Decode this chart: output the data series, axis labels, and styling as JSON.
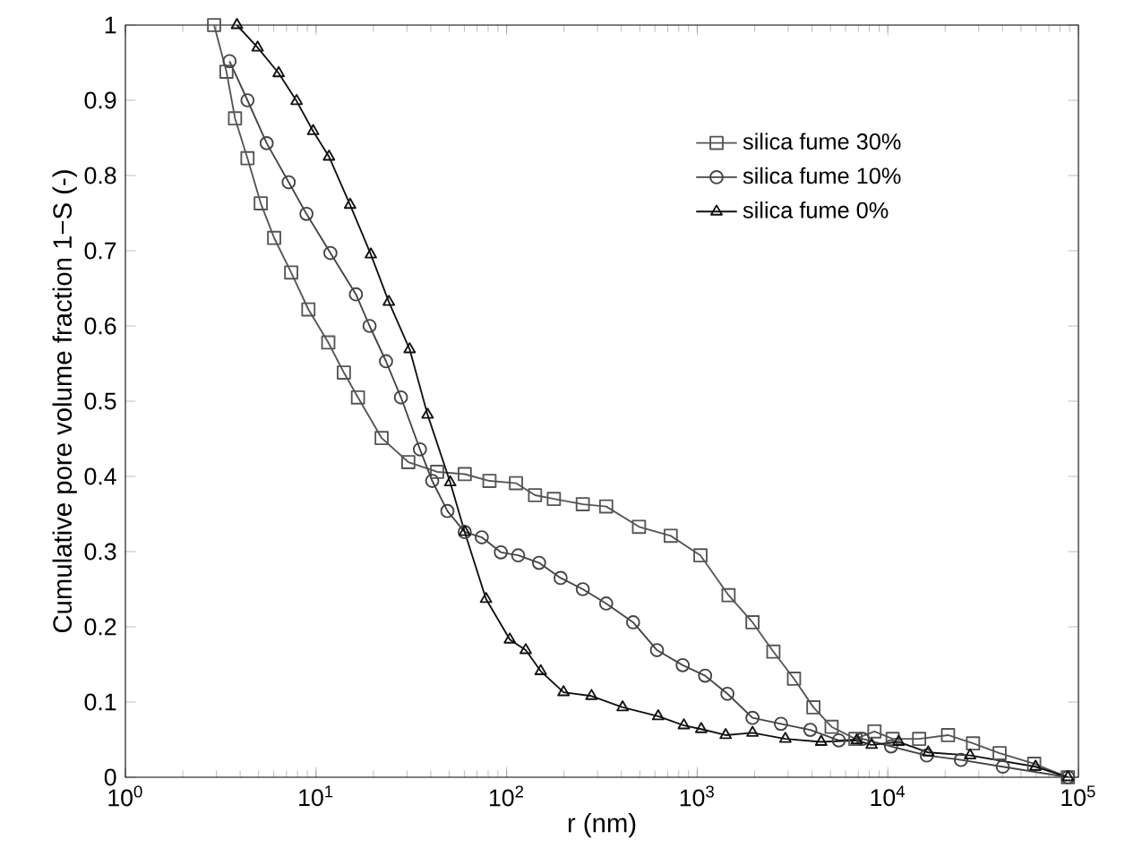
{
  "chart_data": {
    "type": "line",
    "xlabel": "r (nm)",
    "ylabel": "Cumulative pore volume fraction 1−S (-)",
    "log": "x",
    "legend": "top right",
    "grid": false,
    "line_style": "solid",
    "xlim": [
      1,
      100000
    ],
    "ylim": [
      0,
      1
    ],
    "xticks": [
      {
        "value": 1,
        "label": "10$^{0}$"
      },
      {
        "value": 10,
        "label": "10$^{1}$"
      },
      {
        "value": 100,
        "label": "10$^{2}$"
      },
      {
        "value": 1000,
        "label": "10$^{3}$"
      },
      {
        "value": 10000,
        "label": "10$^{4}$"
      },
      {
        "value": 100000,
        "label": "10$^{5}$"
      }
    ],
    "yticks": [
      0,
      0.1,
      0.2,
      0.3,
      0.4,
      0.5,
      0.6,
      0.7,
      0.8,
      0.9,
      1
    ],
    "series": [
      {
        "name": "silica fume 30%",
        "color": "#555555",
        "marker": "square",
        "x": [
          2.92,
          3.39,
          3.76,
          4.37,
          5.13,
          6.03,
          7.41,
          9.12,
          11.6,
          14.0,
          16.6,
          22.1,
          30.5,
          43.2,
          60.3,
          81.3,
          112,
          141,
          177,
          251,
          333,
          495,
          726,
          1040,
          1460,
          1950,
          2510,
          3220,
          4070,
          5070,
          6760,
          8510,
          10600,
          14600,
          20700,
          28000,
          38600,
          58600,
          88100
        ],
        "values": [
          1.0,
          0.938,
          0.876,
          0.823,
          0.763,
          0.717,
          0.671,
          0.622,
          0.578,
          0.538,
          0.505,
          0.451,
          0.419,
          0.406,
          0.403,
          0.394,
          0.391,
          0.375,
          0.37,
          0.363,
          0.36,
          0.333,
          0.321,
          0.295,
          0.242,
          0.206,
          0.167,
          0.131,
          0.093,
          0.067,
          0.051,
          0.061,
          0.051,
          0.051,
          0.056,
          0.045,
          0.032,
          0.018,
          0.0
        ]
      },
      {
        "name": "silica fume 10%",
        "color": "#444444",
        "marker": "circle",
        "x": [
          3.52,
          4.37,
          5.51,
          7.19,
          8.91,
          11.9,
          16.2,
          19.1,
          23.3,
          27.9,
          35.1,
          40.7,
          48.9,
          60.3,
          74.1,
          93.3,
          115,
          148,
          192,
          251,
          333,
          461,
          615,
          839,
          1100,
          1440,
          1950,
          2750,
          3920,
          5530,
          7380,
          10400,
          16000,
          24200,
          40100,
          88100
        ],
        "values": [
          0.952,
          0.9,
          0.843,
          0.791,
          0.749,
          0.697,
          0.642,
          0.6,
          0.553,
          0.505,
          0.436,
          0.394,
          0.354,
          0.326,
          0.319,
          0.299,
          0.295,
          0.285,
          0.265,
          0.25,
          0.231,
          0.206,
          0.169,
          0.149,
          0.135,
          0.111,
          0.079,
          0.071,
          0.063,
          0.049,
          0.051,
          0.041,
          0.029,
          0.023,
          0.014,
          0.0
        ]
      },
      {
        "name": "silica fume 0%",
        "color": "#111111",
        "marker": "triangle",
        "x": [
          3.85,
          4.94,
          6.37,
          7.91,
          9.66,
          11.7,
          15.1,
          19.4,
          24.1,
          31.0,
          38.5,
          50.6,
          60.3,
          78.0,
          104,
          126,
          151,
          199,
          279,
          406,
          624,
          851,
          1050,
          1410,
          1950,
          2900,
          4470,
          6870,
          8220,
          11400,
          16300,
          27000,
          59600,
          88100
        ],
        "values": [
          1.0,
          0.97,
          0.936,
          0.899,
          0.859,
          0.825,
          0.761,
          0.695,
          0.632,
          0.569,
          0.482,
          0.392,
          0.326,
          0.237,
          0.183,
          0.169,
          0.141,
          0.113,
          0.108,
          0.093,
          0.081,
          0.069,
          0.064,
          0.056,
          0.059,
          0.051,
          0.047,
          0.049,
          0.043,
          0.047,
          0.033,
          0.029,
          0.014,
          0.0
        ]
      }
    ]
  }
}
